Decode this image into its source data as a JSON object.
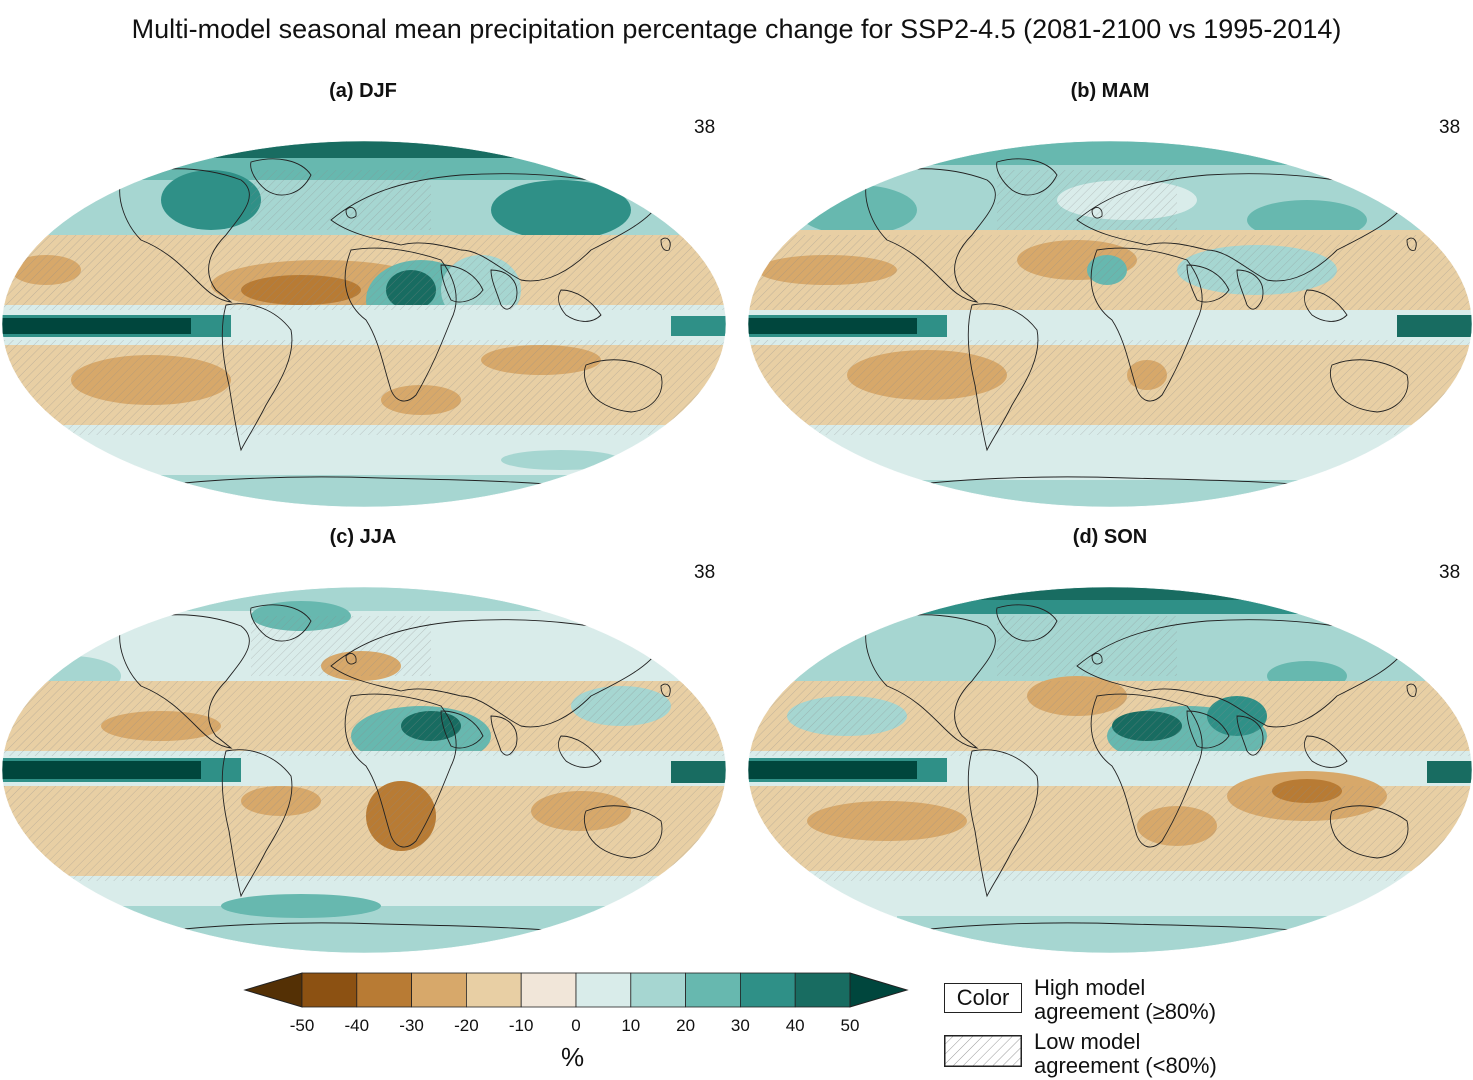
{
  "title": "Multi-model seasonal mean precipitation percentage change for SSP2-4.5 (2081-2100 vs 1995-2014)",
  "panels": [
    {
      "label": "(a) DJF",
      "count": "38"
    },
    {
      "label": "(b) MAM",
      "count": "38"
    },
    {
      "label": "(c) JJA",
      "count": "38"
    },
    {
      "label": "(d) SON",
      "count": "38"
    }
  ],
  "colorbar": {
    "ticks": [
      "-50",
      "-40",
      "-30",
      "-20",
      "-10",
      "0",
      "10",
      "20",
      "30",
      "40",
      "50"
    ],
    "unit": "%",
    "colors": [
      "#543005",
      "#8c5112",
      "#b87b34",
      "#d7a86a",
      "#e8cfa4",
      "#f1e6d9",
      "#d9ecea",
      "#a6d6d1",
      "#67b8af",
      "#2f9087",
      "#186c61",
      "#00463d"
    ]
  },
  "legend": {
    "color_box": "Color",
    "high_line1": "High model",
    "high_line2": "agreement (≥80%)",
    "low_line1": "Low model",
    "low_line2": "agreement (<80%)"
  }
}
